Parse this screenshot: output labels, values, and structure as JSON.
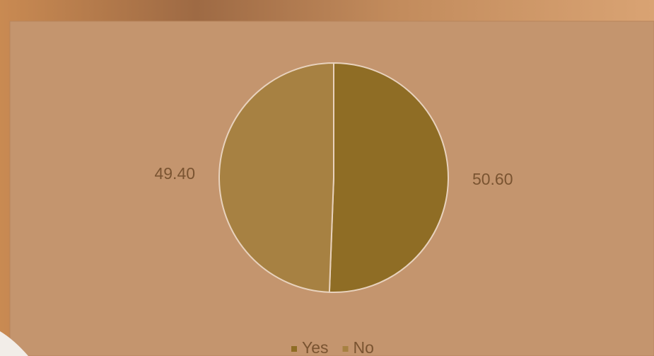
{
  "chart_data": {
    "type": "pie",
    "categories": [
      "Yes",
      "No"
    ],
    "values": [
      50.6,
      49.4
    ],
    "value_labels": [
      "50.60",
      "49.40"
    ],
    "colors": [
      "#8f6d25",
      "#a78142"
    ],
    "legend": "bottom"
  }
}
